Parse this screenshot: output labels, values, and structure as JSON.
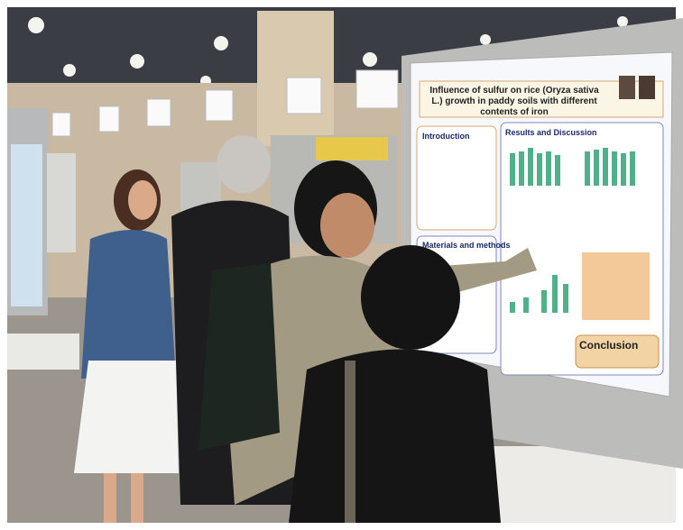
{
  "poster": {
    "title": "Influence of sulfur on rice (Oryza sativa L.) growth in paddy soils with different contents of iron",
    "sections": [
      "Introduction",
      "Results and Discussion",
      "Materials and methods",
      "Conclusion"
    ]
  }
}
